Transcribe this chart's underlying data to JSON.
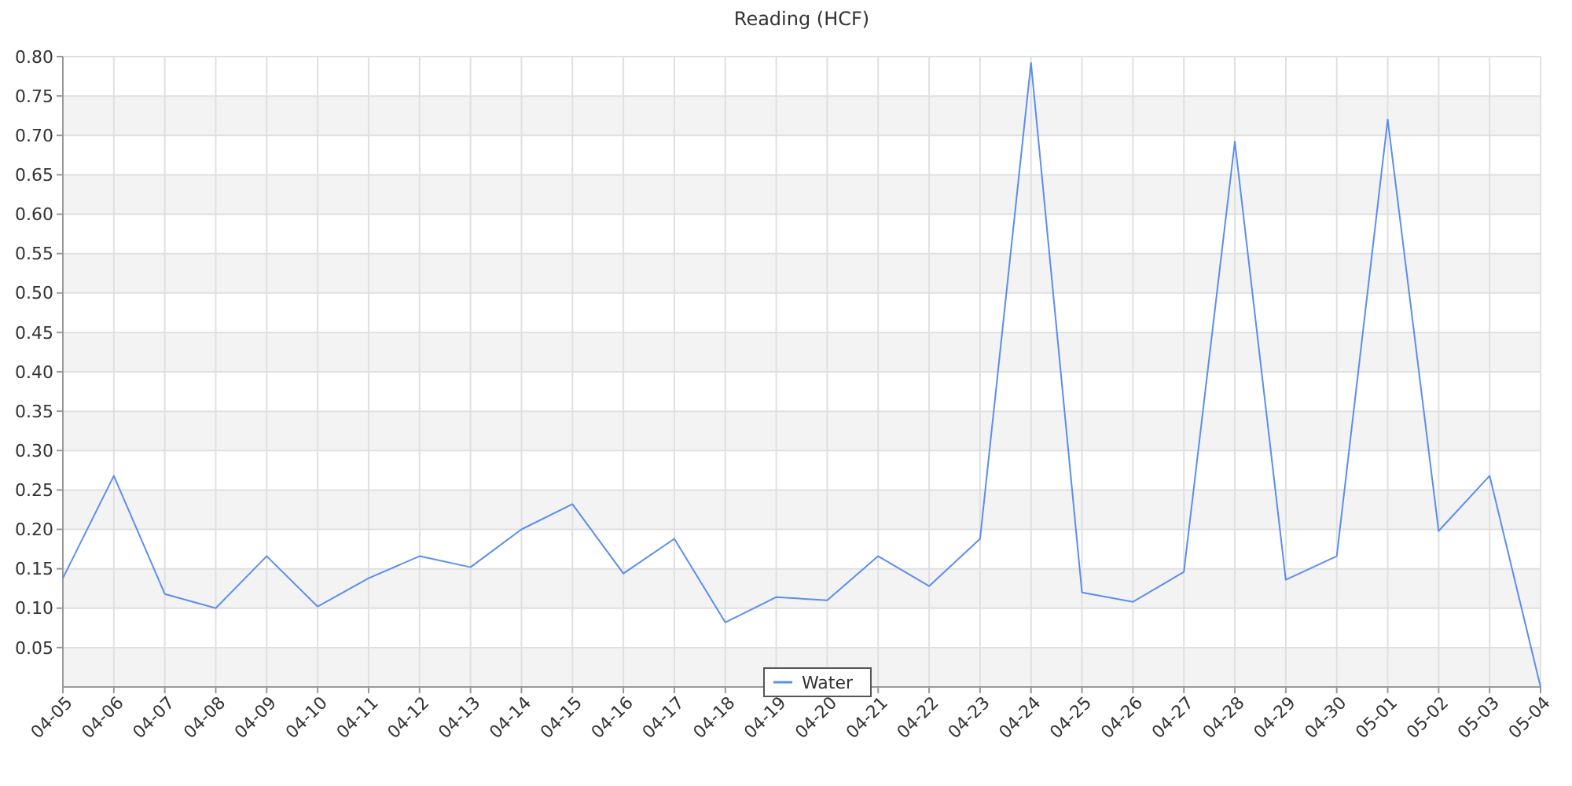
{
  "chart_data": {
    "type": "line",
    "title": "Reading (HCF)",
    "categories": [
      "04-05",
      "04-06",
      "04-07",
      "04-08",
      "04-09",
      "04-10",
      "04-11",
      "04-12",
      "04-13",
      "04-14",
      "04-15",
      "04-16",
      "04-17",
      "04-18",
      "04-19",
      "04-20",
      "04-21",
      "04-22",
      "04-23",
      "04-24",
      "04-25",
      "04-26",
      "04-27",
      "04-28",
      "04-29",
      "04-30",
      "05-01",
      "05-02",
      "05-03",
      "05-04"
    ],
    "series": [
      {
        "name": "Water",
        "color": "#5b8def",
        "values": [
          0.138,
          0.268,
          0.118,
          0.1,
          0.166,
          0.102,
          0.138,
          0.166,
          0.152,
          0.2,
          0.232,
          0.144,
          0.188,
          0.082,
          0.114,
          0.11,
          0.166,
          0.128,
          0.188,
          0.792,
          0.12,
          0.108,
          0.146,
          0.692,
          0.136,
          0.166,
          0.72,
          0.198,
          0.268,
          0
        ]
      }
    ],
    "ylim": [
      0,
      0.8
    ],
    "yticks": [
      0.05,
      {
        "value": 0.1,
        "label": "0.10"
      },
      0.15,
      {
        "value": 0.2,
        "label": "0.20"
      },
      0.25,
      {
        "value": 0.3,
        "label": "0.30"
      },
      0.35,
      {
        "value": 0.4,
        "label": "0.40"
      },
      0.45,
      {
        "value": 0.5,
        "label": "0.50"
      },
      0.55,
      {
        "value": 0.6,
        "label": "0.60"
      },
      0.65,
      {
        "value": 0.7,
        "label": "0.70"
      },
      0.75,
      {
        "value": 0.8,
        "label": "0.80"
      }
    ],
    "grid": true,
    "legend": "bottom",
    "marker": "none",
    "line_style": "solid"
  }
}
